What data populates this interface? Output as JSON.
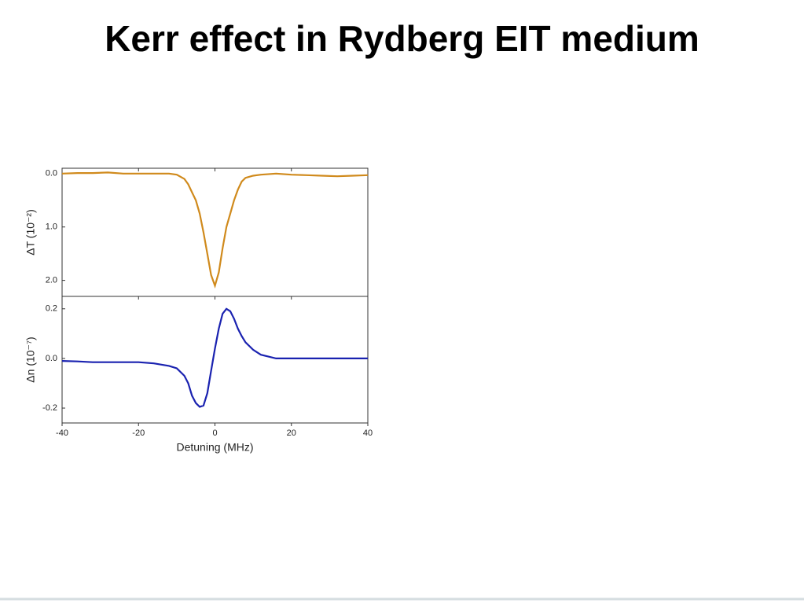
{
  "title": "Kerr effect in Rydberg EIT medium",
  "chart_data": [
    {
      "type": "line",
      "ylabel": "ΔT (10⁻²)",
      "x": [
        -40,
        -36,
        -32,
        -28,
        -24,
        -20,
        -16,
        -12,
        -10,
        -8,
        -7,
        -6,
        -5,
        -4,
        -3,
        -2,
        -1,
        0,
        1,
        2,
        3,
        4,
        5,
        6,
        7,
        8,
        10,
        12,
        16,
        20,
        24,
        28,
        32,
        36,
        40
      ],
      "series": [
        {
          "color": "#d08a1c",
          "values": [
            0.0,
            -0.01,
            -0.01,
            -0.02,
            0.0,
            0.0,
            0.0,
            0.0,
            0.02,
            0.1,
            0.2,
            0.35,
            0.5,
            0.75,
            1.1,
            1.5,
            1.9,
            2.1,
            1.85,
            1.4,
            1.0,
            0.75,
            0.5,
            0.3,
            0.15,
            0.08,
            0.04,
            0.02,
            0.0,
            0.02,
            0.03,
            0.04,
            0.05,
            0.04,
            0.03
          ]
        }
      ],
      "xlim": [
        -40,
        40
      ],
      "ylim": [
        2.3,
        -0.1
      ],
      "yticks": [
        {
          "value": 0,
          "label": "0.0"
        },
        {
          "value": 1,
          "label": "1.0"
        },
        {
          "value": 2,
          "label": "2.0"
        }
      ]
    },
    {
      "type": "line",
      "ylabel": "Δn (10⁻⁷)",
      "xlabel": "Detuning (MHz)",
      "x": [
        -40,
        -36,
        -32,
        -28,
        -24,
        -20,
        -16,
        -12,
        -10,
        -8,
        -7,
        -6,
        -5,
        -4,
        -3,
        -2,
        -1,
        0,
        1,
        2,
        3,
        4,
        5,
        6,
        7,
        8,
        10,
        12,
        16,
        20,
        24,
        28,
        32,
        36,
        40
      ],
      "series": [
        {
          "color": "#1a22b0",
          "values": [
            -0.01,
            -0.012,
            -0.015,
            -0.015,
            -0.015,
            -0.015,
            -0.02,
            -0.03,
            -0.04,
            -0.07,
            -0.1,
            -0.15,
            -0.18,
            -0.195,
            -0.19,
            -0.14,
            -0.05,
            0.04,
            0.12,
            0.18,
            0.2,
            0.19,
            0.16,
            0.12,
            0.09,
            0.065,
            0.035,
            0.015,
            0.0,
            0.0,
            0.0,
            0.0,
            0.0,
            0.0,
            0.0
          ]
        }
      ],
      "xlim": [
        -40,
        40
      ],
      "ylim": [
        -0.26,
        0.25
      ],
      "xticks": [
        -40,
        -20,
        0,
        20,
        40
      ],
      "yticks": [
        0.2,
        {
          "value": 0,
          "label": "0.0"
        },
        -0.2
      ]
    }
  ]
}
